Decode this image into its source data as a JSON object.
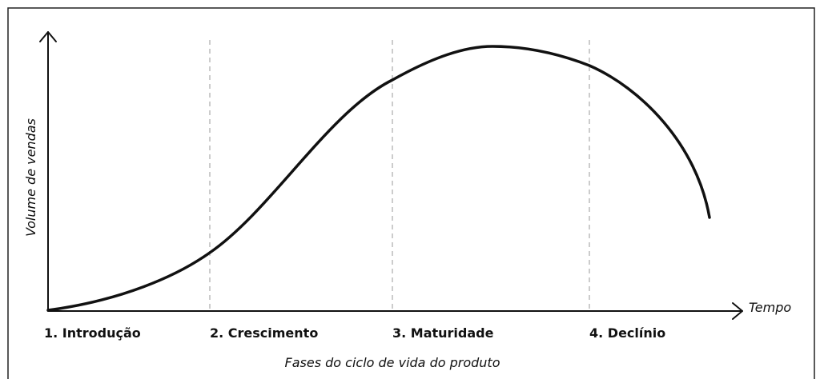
{
  "y_axis_label": "Volume de vendas",
  "x_axis_label": "Tempo",
  "stages": [
    "1. Introdução",
    "2. Crescimento",
    "3. Maturidade",
    "4. Declínio"
  ],
  "caption": "Fases do ciclo de vida do produto"
}
